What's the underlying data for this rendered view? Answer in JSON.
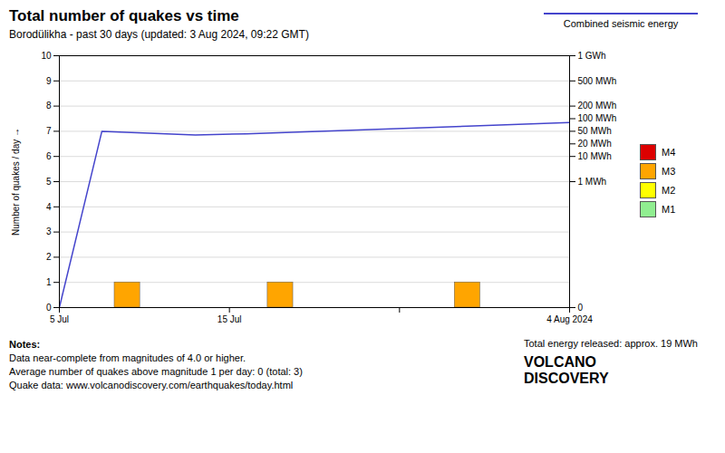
{
  "chart_data": {
    "type": "bar",
    "title": "Total number of quakes vs time",
    "subtitle": "Borodülikha - past 30 days (updated: 3 Aug 2024, 09:22 GMT)",
    "ylabel": "Number of quakes / day",
    "xlim": [
      0,
      30
    ],
    "xticks": [
      {
        "value": 0,
        "label": "5 Jul"
      },
      {
        "value": 10,
        "label": "15 Jul"
      },
      {
        "value": 20,
        "label": null
      },
      {
        "value": 30,
        "label": "4 Aug 2024"
      }
    ],
    "ylim": [
      0,
      10
    ],
    "yticks": [
      0,
      1,
      2,
      3,
      4,
      5,
      6,
      7,
      8,
      9,
      10
    ],
    "grid": true,
    "y2lim": [
      0,
      10
    ],
    "y2ticks": [
      {
        "value": 10,
        "label": "1 GWh"
      },
      {
        "value": 9,
        "label": "500 MWh"
      },
      {
        "value": 8,
        "label": "200 MWh"
      },
      {
        "value": 7.5,
        "label": "100 MWh"
      },
      {
        "value": 7,
        "label": "50 MWh"
      },
      {
        "value": 6.5,
        "label": "20 MWh"
      },
      {
        "value": 6,
        "label": "10 MWh"
      },
      {
        "value": 5,
        "label": "1 MWh"
      },
      0
    ],
    "series": [
      {
        "name": "M4",
        "type": "bar",
        "color": "#dd0000",
        "x": [],
        "values": []
      },
      {
        "name": "M3",
        "type": "bar",
        "color": "#FFA500",
        "x": [
          4,
          13,
          24
        ],
        "values": [
          1,
          1,
          1
        ]
      },
      {
        "name": "M2",
        "type": "bar",
        "color": "#FFFF00",
        "x": [],
        "values": []
      },
      {
        "name": "M1",
        "type": "bar",
        "color": "#90EE90",
        "x": [],
        "values": []
      },
      {
        "name": "Combined seismic energy",
        "type": "line",
        "axis": "y2",
        "color": "#4444cc",
        "x": [
          0,
          2.5,
          8,
          11,
          24,
          30
        ],
        "values": [
          0,
          7.0,
          6.85,
          6.9,
          7.2,
          7.35
        ]
      }
    ],
    "notes": [
      "Notes:",
      "Data near-complete from magnitudes of 4.0 or higher.",
      "Average number of quakes above magnitude 1 per day: 0 (total: 3)",
      "Quake data: www.volcanodiscovery.com/earthquakes/today.html"
    ],
    "annotations": [
      "Total energy released: approx. 19 MWh",
      "VOLCANO",
      "DISCOVERY"
    ]
  }
}
